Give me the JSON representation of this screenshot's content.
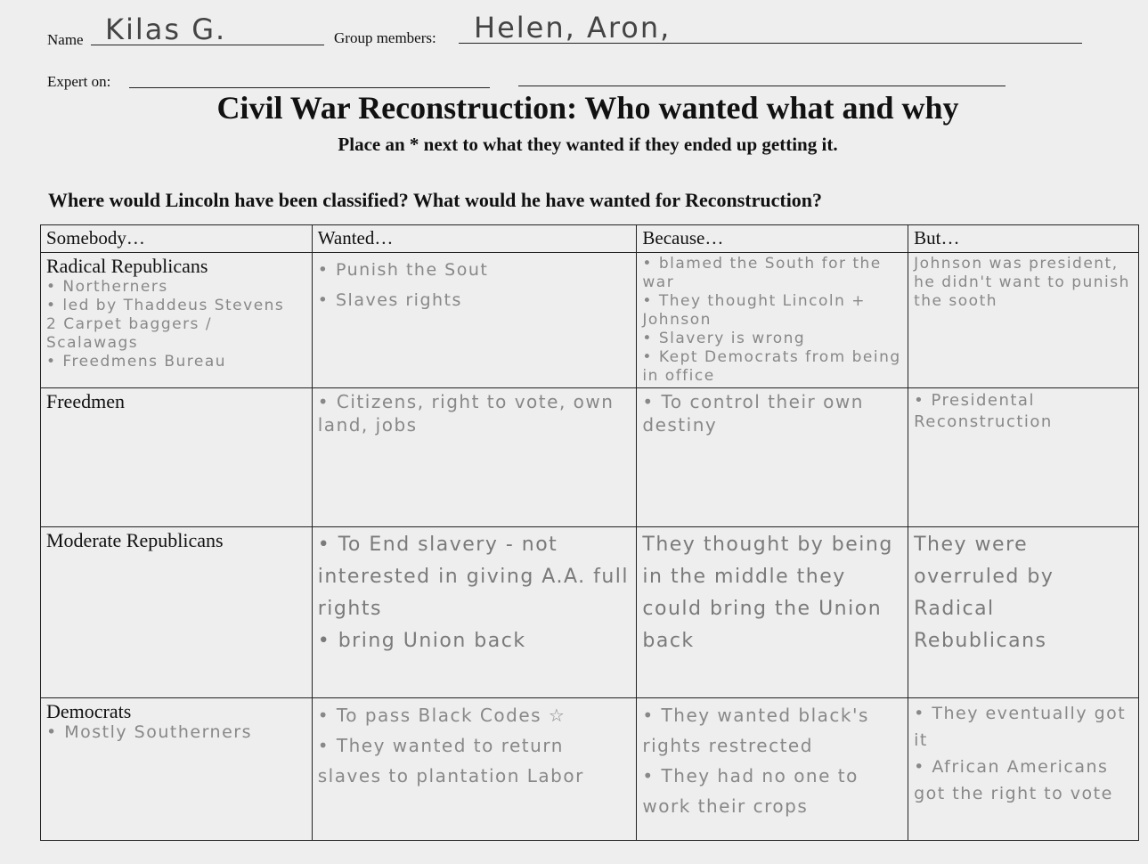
{
  "header": {
    "name_label": "Name",
    "name_value": "Kilas G.",
    "group_label": "Group members:",
    "group_value": "Helen, Aron,",
    "expert_label": "Expert on:"
  },
  "title": "Civil War Reconstruction: Who wanted what and why",
  "subtitle": "Place an * next to what they wanted if they ended up getting it.",
  "question": "Where would Lincoln have been classified?  What would he have wanted for Reconstruction?",
  "table": {
    "columns": [
      "Somebody…",
      "Wanted…",
      "Because…",
      "But…"
    ],
    "rows": [
      {
        "name": "Radical Republicans",
        "notes": [
          "• Northerners",
          "• led by Thaddeus Stevens",
          "2 Carpet baggers / Scalawags",
          "• Freedmens Bureau"
        ],
        "wanted": [
          "• Punish the Sout",
          "• Slaves rights"
        ],
        "because": [
          "• blamed the South for the war",
          "• They thought Lincoln + Johnson",
          "• Slavery is wrong",
          "• Kept Democrats from being in office"
        ],
        "but": [
          "Johnson was president, he didn't want to punish the sooth"
        ]
      },
      {
        "name": "Freedmen",
        "notes": [],
        "wanted": [
          "• Citizens, right to vote, own land, jobs"
        ],
        "because": [
          "• To control their own destiny"
        ],
        "but": [
          "• Presidental Reconstruction"
        ]
      },
      {
        "name": "Moderate Republicans",
        "notes": [],
        "wanted": [
          "• To End slavery - not interested in giving A.A. full rights",
          "• bring Union back"
        ],
        "because": [
          "They thought by being in the middle they could bring the Union back"
        ],
        "but": [
          "They were overruled by Radical Rebublicans"
        ]
      },
      {
        "name": "Democrats",
        "notes": [
          "• Mostly Southerners"
        ],
        "wanted": [
          "• To pass Black Codes ☆",
          "• They wanted to return slaves to plantation Labor"
        ],
        "because": [
          "• They wanted black's rights restrected",
          "• They had no one to work their crops"
        ],
        "but": [
          "• They eventually got it",
          "• African Americans got the right to vote"
        ]
      }
    ]
  }
}
